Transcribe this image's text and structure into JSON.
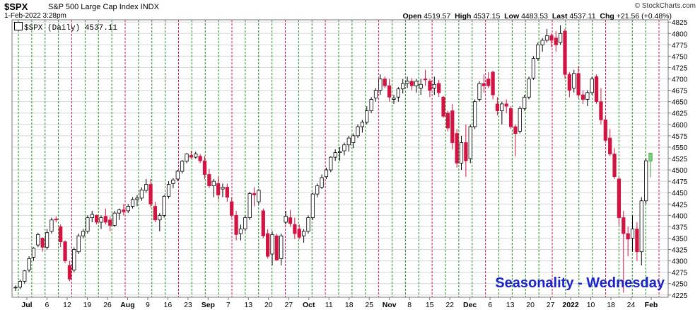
{
  "header": {
    "symbol": "$SPX",
    "description": "S&P 500 Large Cap Index INDX",
    "datetime": "1-Feb-2022 3:28pm",
    "credit": "© StockCharts.com",
    "open_label": "Open",
    "open": "4519.57",
    "high_label": "High",
    "high": "4537.15",
    "low_label": "Low",
    "low": "4483.53",
    "last_label": "Last",
    "last": "4537.11",
    "chg_label": "Chg",
    "chg": "+21.56 (+0.48%)"
  },
  "legend": {
    "text": "$SPX (Daily) 4537.11"
  },
  "watermark": "Seasonality - Wednesday",
  "colors": {
    "up": "#ffffff",
    "down": "#d21443",
    "last": "#7ed27e",
    "green_line": "#1e8c1e",
    "red_line": "#d21443",
    "grid": "#d8d8d8",
    "watermark": "#1a24c8"
  },
  "chart_data": {
    "type": "candlestick",
    "title": "$SPX (Daily) 4537.11",
    "ylim": [
      4220,
      4830
    ],
    "y_ticks": [
      4225,
      4250,
      4275,
      4300,
      4325,
      4350,
      4375,
      4400,
      4425,
      4450,
      4475,
      4500,
      4525,
      4550,
      4575,
      4600,
      4625,
      4650,
      4675,
      4700,
      4725,
      4750,
      4775,
      4800,
      4825
    ],
    "x_ticks": [
      "Jul",
      "6",
      "12",
      "19",
      "26",
      "Aug",
      "9",
      "16",
      "23",
      "Sep",
      "7",
      "13",
      "20",
      "27",
      "Oct",
      "11",
      "18",
      "25",
      "Nov",
      "8",
      "15",
      "22",
      "Dec",
      "6",
      "13",
      "20",
      "27",
      "2022",
      "10",
      "18",
      "24",
      "Feb"
    ],
    "vertical_markers": [
      "green",
      "green",
      "green",
      "green",
      "red",
      "green",
      "green",
      "green",
      "red",
      "green",
      "green",
      "green",
      "red",
      "green",
      "green",
      "green",
      "red",
      "green",
      "green",
      "green",
      "red",
      "green",
      "green",
      "red",
      "green",
      "green",
      "green",
      "red",
      "green",
      "green",
      "green",
      "red",
      "green",
      "green",
      "green",
      "red",
      "green",
      "green",
      "green",
      "green",
      "red",
      "green",
      "green",
      "green",
      "red",
      "green",
      "green",
      "green",
      "red"
    ],
    "bars": [
      [
        4241,
        4246,
        4234,
        4242
      ],
      [
        4242,
        4259,
        4238,
        4255
      ],
      [
        4255,
        4280,
        4250,
        4278
      ],
      [
        4280,
        4310,
        4275,
        4305
      ],
      [
        4308,
        4330,
        4300,
        4328
      ],
      [
        4335,
        4362,
        4330,
        4358
      ],
      [
        4350,
        4352,
        4320,
        4330
      ],
      [
        4330,
        4370,
        4325,
        4362
      ],
      [
        4365,
        4395,
        4360,
        4390
      ],
      [
        4392,
        4398,
        4385,
        4390
      ],
      [
        4375,
        4380,
        4330,
        4342
      ],
      [
        4342,
        4345,
        4295,
        4300
      ],
      [
        4290,
        4300,
        4255,
        4260
      ],
      [
        4280,
        4330,
        4275,
        4325
      ],
      [
        4320,
        4360,
        4315,
        4355
      ],
      [
        4355,
        4370,
        4350,
        4365
      ],
      [
        4365,
        4400,
        4360,
        4395
      ],
      [
        4395,
        4410,
        4385,
        4402
      ],
      [
        4400,
        4402,
        4380,
        4385
      ],
      [
        4385,
        4400,
        4370,
        4395
      ],
      [
        4398,
        4415,
        4380,
        4385
      ],
      [
        4390,
        4398,
        4365,
        4378
      ],
      [
        4378,
        4410,
        4375,
        4405
      ],
      [
        4405,
        4415,
        4390,
        4412
      ],
      [
        4412,
        4425,
        4400,
        4408
      ],
      [
        4410,
        4425,
        4405,
        4420
      ],
      [
        4420,
        4440,
        4415,
        4435
      ],
      [
        4435,
        4445,
        4420,
        4438
      ],
      [
        4438,
        4462,
        4432,
        4456
      ],
      [
        4455,
        4480,
        4450,
        4468
      ],
      [
        4468,
        4480,
        4418,
        4425
      ],
      [
        4420,
        4430,
        4385,
        4390
      ],
      [
        4390,
        4405,
        4365,
        4400
      ],
      [
        4400,
        4445,
        4395,
        4442
      ],
      [
        4442,
        4475,
        4437,
        4468
      ],
      [
        4470,
        4482,
        4460,
        4478
      ],
      [
        4480,
        4500,
        4475,
        4497
      ],
      [
        4497,
        4522,
        4492,
        4519
      ],
      [
        4519,
        4537,
        4515,
        4535
      ],
      [
        4532,
        4542,
        4525,
        4528
      ],
      [
        4528,
        4540,
        4525,
        4535
      ],
      [
        4530,
        4535,
        4515,
        4520
      ],
      [
        4520,
        4530,
        4480,
        4490
      ],
      [
        4490,
        4502,
        4460,
        4465
      ],
      [
        4465,
        4480,
        4440,
        4475
      ],
      [
        4470,
        4485,
        4435,
        4445
      ],
      [
        4458,
        4470,
        4440,
        4462
      ],
      [
        4462,
        4470,
        4430,
        4440
      ],
      [
        4430,
        4440,
        4395,
        4400
      ],
      [
        4400,
        4410,
        4345,
        4358
      ],
      [
        4360,
        4380,
        4345,
        4370
      ],
      [
        4370,
        4400,
        4365,
        4395
      ],
      [
        4395,
        4452,
        4390,
        4448
      ],
      [
        4448,
        4462,
        4420,
        4445
      ],
      [
        4430,
        4458,
        4425,
        4455
      ],
      [
        4410,
        4415,
        4350,
        4355
      ],
      [
        4360,
        4370,
        4305,
        4310
      ],
      [
        4315,
        4365,
        4290,
        4358
      ],
      [
        4355,
        4360,
        4300,
        4302
      ],
      [
        4305,
        4360,
        4290,
        4355
      ],
      [
        4385,
        4410,
        4380,
        4398
      ],
      [
        4395,
        4412,
        4375,
        4382
      ],
      [
        4380,
        4395,
        4348,
        4360
      ],
      [
        4370,
        4380,
        4348,
        4352
      ],
      [
        4355,
        4370,
        4340,
        4365
      ],
      [
        4365,
        4400,
        4360,
        4395
      ],
      [
        4395,
        4450,
        4390,
        4447
      ],
      [
        4447,
        4470,
        4440,
        4465
      ],
      [
        4462,
        4490,
        4458,
        4483
      ],
      [
        4485,
        4505,
        4480,
        4500
      ],
      [
        4500,
        4530,
        4495,
        4528
      ],
      [
        4528,
        4545,
        4520,
        4538
      ],
      [
        4538,
        4550,
        4520,
        4540
      ],
      [
        4542,
        4560,
        4532,
        4555
      ],
      [
        4555,
        4575,
        4540,
        4570
      ],
      [
        4560,
        4580,
        4548,
        4575
      ],
      [
        4575,
        4600,
        4570,
        4595
      ],
      [
        4595,
        4610,
        4582,
        4605
      ],
      [
        4605,
        4640,
        4600,
        4630
      ],
      [
        4630,
        4660,
        4625,
        4655
      ],
      [
        4658,
        4680,
        4650,
        4675
      ],
      [
        4675,
        4710,
        4665,
        4700
      ],
      [
        4700,
        4705,
        4680,
        4685
      ],
      [
        4685,
        4700,
        4650,
        4660
      ],
      [
        4655,
        4665,
        4645,
        4658
      ],
      [
        4660,
        4682,
        4650,
        4678
      ],
      [
        4678,
        4700,
        4668,
        4690
      ],
      [
        4690,
        4705,
        4680,
        4695
      ],
      [
        4695,
        4702,
        4675,
        4685
      ],
      [
        4685,
        4700,
        4670,
        4695
      ],
      [
        4680,
        4700,
        4665,
        4688
      ],
      [
        4700,
        4720,
        4685,
        4698
      ],
      [
        4695,
        4700,
        4660,
        4675
      ],
      [
        4680,
        4705,
        4665,
        4688
      ],
      [
        4690,
        4698,
        4660,
        4670
      ],
      [
        4660,
        4662,
        4615,
        4618
      ],
      [
        4625,
        4630,
        4585,
        4592
      ],
      [
        4630,
        4645,
        4545,
        4560
      ],
      [
        4580,
        4590,
        4505,
        4515
      ],
      [
        4515,
        4575,
        4500,
        4560
      ],
      [
        4560,
        4600,
        4485,
        4520
      ],
      [
        4525,
        4600,
        4515,
        4595
      ],
      [
        4595,
        4655,
        4590,
        4650
      ],
      [
        4655,
        4695,
        4650,
        4690
      ],
      [
        4690,
        4710,
        4670,
        4685
      ],
      [
        4700,
        4715,
        4680,
        4685
      ],
      [
        4715,
        4718,
        4655,
        4665
      ],
      [
        4645,
        4660,
        4620,
        4630
      ],
      [
        4630,
        4650,
        4600,
        4645
      ],
      [
        4645,
        4655,
        4625,
        4640
      ],
      [
        4635,
        4640,
        4590,
        4595
      ],
      [
        4595,
        4600,
        4530,
        4580
      ],
      [
        4585,
        4640,
        4580,
        4635
      ],
      [
        4635,
        4665,
        4630,
        4660
      ],
      [
        4660,
        4705,
        4655,
        4700
      ],
      [
        4702,
        4750,
        4698,
        4745
      ],
      [
        4745,
        4780,
        4740,
        4775
      ],
      [
        4775,
        4790,
        4760,
        4785
      ],
      [
        4785,
        4810,
        4780,
        4795
      ],
      [
        4795,
        4800,
        4770,
        4785
      ],
      [
        4790,
        4805,
        4760,
        4775
      ],
      [
        4780,
        4818,
        4775,
        4800
      ],
      [
        4805,
        4810,
        4700,
        4710
      ],
      [
        4710,
        4715,
        4660,
        4675
      ],
      [
        4680,
        4720,
        4670,
        4712
      ],
      [
        4712,
        4728,
        4658,
        4665
      ],
      [
        4665,
        4675,
        4645,
        4655
      ],
      [
        4655,
        4675,
        4640,
        4670
      ],
      [
        4670,
        4705,
        4665,
        4700
      ],
      [
        4705,
        4710,
        4645,
        4650
      ],
      [
        4650,
        4680,
        4600,
        4610
      ],
      [
        4610,
        4620,
        4560,
        4565
      ],
      [
        4570,
        4590,
        4530,
        4535
      ],
      [
        4535,
        4548,
        4480,
        4485
      ],
      [
        4480,
        4485,
        4378,
        4395
      ],
      [
        4395,
        4410,
        4230,
        4360
      ],
      [
        4360,
        4375,
        4310,
        4348
      ],
      [
        4350,
        4400,
        4320,
        4370
      ],
      [
        4370,
        4385,
        4300,
        4320
      ],
      [
        4320,
        4440,
        4290,
        4432
      ],
      [
        4432,
        4525,
        4425,
        4520
      ],
      [
        4519.57,
        4537.15,
        4483.53,
        4537.11
      ]
    ]
  }
}
